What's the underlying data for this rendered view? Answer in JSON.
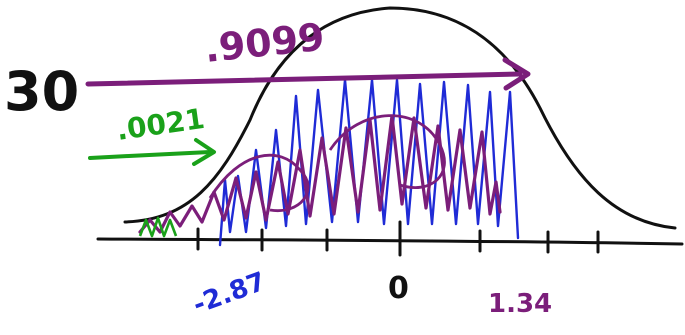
{
  "labels": {
    "left_number": "30",
    "top_probability": ".9099",
    "left_probability": ".0021",
    "left_z": "-2.87",
    "center_z": "0",
    "right_z": "1.34"
  },
  "colors": {
    "ink": "#111111",
    "purple": "#7b1e7a",
    "blue": "#1f2bd6",
    "green": "#1aa11a"
  }
}
